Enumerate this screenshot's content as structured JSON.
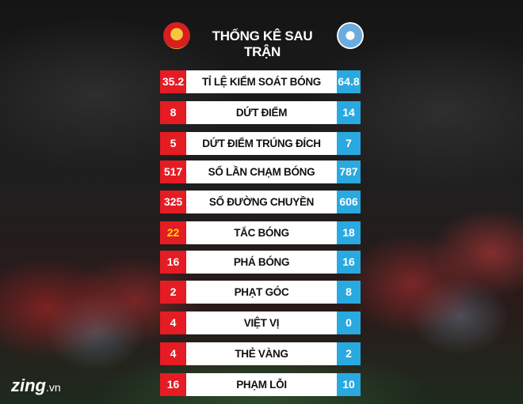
{
  "title": "THỐNG KÊ SAU TRẬN",
  "icons": {
    "home": "manchester-united-crest",
    "away": "manchester-city-crest"
  },
  "colors": {
    "home": "#e51c23",
    "away": "#29a9e0",
    "highlight": "#ffd800"
  },
  "stats": [
    {
      "label": "TỈ LỆ KIỂM SOÁT BÓNG",
      "home": "35.2",
      "away": "64.8"
    },
    {
      "label": "DỨT ĐIỂM",
      "home": "8",
      "away": "14"
    },
    {
      "label": "DỨT ĐIỂM TRÚNG ĐÍCH",
      "home": "5",
      "away": "7"
    },
    {
      "label": "SỐ LẦN CHẠM BÓNG",
      "home": "517",
      "away": "787"
    },
    {
      "label": "SỐ ĐƯỜNG CHUYỀN",
      "home": "325",
      "away": "606"
    },
    {
      "label": "TẮC BÓNG",
      "home": "22",
      "away": "18"
    },
    {
      "label": "PHÁ BÓNG",
      "home": "16",
      "away": "16"
    },
    {
      "label": "PHẠT GÓC",
      "home": "2",
      "away": "8"
    },
    {
      "label": "VIỆT VỊ",
      "home": "4",
      "away": "0"
    },
    {
      "label": "THẺ VÀNG",
      "home": "4",
      "away": "2"
    },
    {
      "label": "PHẠM LỖI",
      "home": "16",
      "away": "10"
    }
  ],
  "watermark": {
    "brand": "zing",
    "suffix": ".vn"
  }
}
